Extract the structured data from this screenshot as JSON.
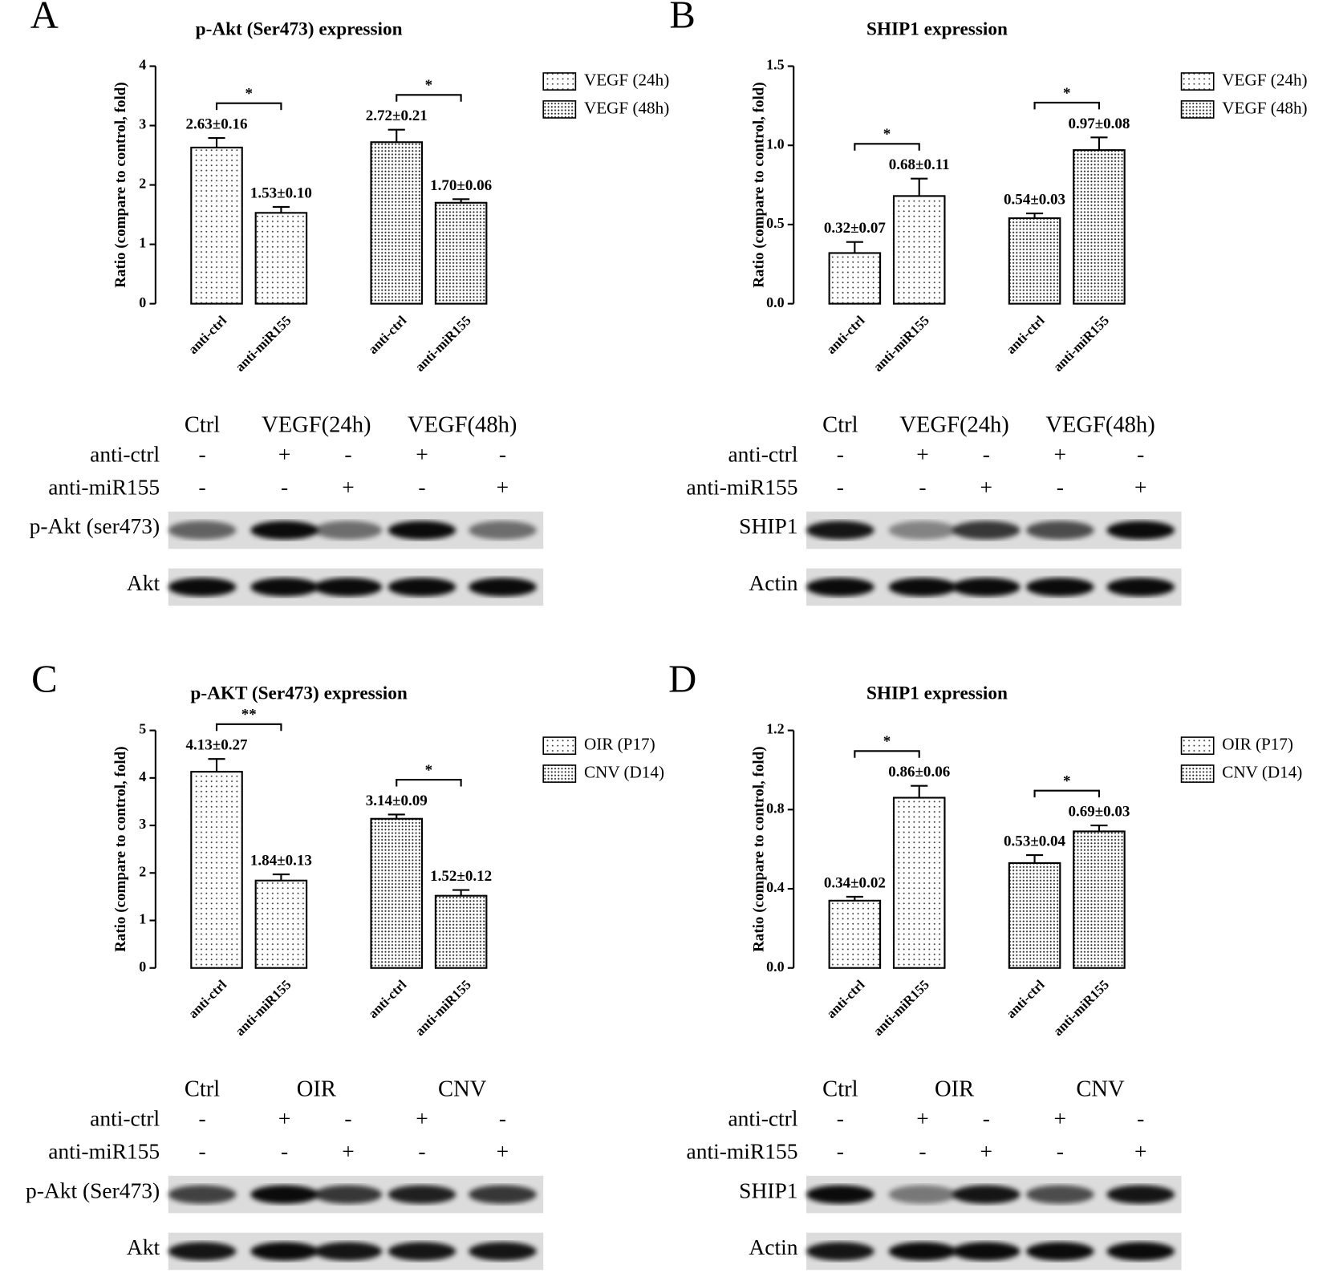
{
  "chart_data": [
    {
      "type": "bar",
      "panel": "A",
      "title": "p-Akt (Ser473) expression",
      "y_label": "Ratio (compare to control, fold)",
      "categories": [
        "anti-ctrl",
        "anti-miR155"
      ],
      "series": [
        {
          "name": "VEGF (24h)",
          "pattern": "sparse-dots",
          "values": [
            2.63,
            1.53
          ],
          "errors": [
            0.16,
            0.1
          ],
          "value_labels": [
            "2.63±0.16",
            "1.53±0.10"
          ],
          "significance": "*"
        },
        {
          "name": "VEGF (48h)",
          "pattern": "dense-dots",
          "values": [
            2.72,
            1.7
          ],
          "errors": [
            0.21,
            0.06
          ],
          "value_labels": [
            "2.72±0.21",
            "1.70±0.06"
          ],
          "significance": "*"
        }
      ],
      "ylim": [
        0,
        4
      ],
      "yticks": [
        0,
        1,
        2,
        3,
        4
      ]
    },
    {
      "type": "bar",
      "panel": "B",
      "title": "SHIP1 expression",
      "y_label": "Ratio (compare to control, fold)",
      "categories": [
        "anti-ctrl",
        "anti-miR155"
      ],
      "series": [
        {
          "name": "VEGF (24h)",
          "pattern": "sparse-dots",
          "values": [
            0.32,
            0.68
          ],
          "errors": [
            0.07,
            0.11
          ],
          "value_labels": [
            "0.32±0.07",
            "0.68±0.11"
          ],
          "significance": "*"
        },
        {
          "name": "VEGF (48h)",
          "pattern": "dense-dots",
          "values": [
            0.54,
            0.97
          ],
          "errors": [
            0.03,
            0.08
          ],
          "value_labels": [
            "0.54±0.03",
            "0.97±0.08"
          ],
          "significance": "*"
        }
      ],
      "ylim": [
        0,
        1.5
      ],
      "yticks": [
        {
          "value": 0,
          "label": "0.0"
        },
        {
          "value": 0.5,
          "label": "0.5"
        },
        {
          "value": 1,
          "label": "1.0"
        },
        {
          "value": 1.5,
          "label": "1.5"
        }
      ]
    },
    {
      "type": "bar",
      "panel": "C",
      "title": "p-AKT (Ser473) expression",
      "y_label": "Ratio (compare to control, fold)",
      "categories": [
        "anti-ctrl",
        "anti-miR155"
      ],
      "series": [
        {
          "name": "OIR (P17)",
          "pattern": "sparse-dots",
          "values": [
            4.13,
            1.84
          ],
          "errors": [
            0.27,
            0.13
          ],
          "value_labels": [
            "4.13±0.27",
            "1.84±0.13"
          ],
          "significance": "**"
        },
        {
          "name": "CNV (D14)",
          "pattern": "dense-dots",
          "values": [
            3.14,
            1.52
          ],
          "errors": [
            0.09,
            0.12
          ],
          "value_labels": [
            "3.14±0.09",
            "1.52±0.12"
          ],
          "significance": "*"
        }
      ],
      "ylim": [
        0,
        5
      ],
      "yticks": [
        0,
        1,
        2,
        3,
        4,
        5
      ]
    },
    {
      "type": "bar",
      "panel": "D",
      "title": "SHIP1 expression",
      "y_label": "Ratio (compare to control, fold)",
      "categories": [
        "anti-ctrl",
        "anti-miR155"
      ],
      "series": [
        {
          "name": "OIR (P17)",
          "pattern": "sparse-dots",
          "values": [
            0.34,
            0.86
          ],
          "errors": [
            0.02,
            0.06
          ],
          "value_labels": [
            "0.34±0.02",
            "0.86±0.06"
          ],
          "significance": "*"
        },
        {
          "name": "CNV (D14)",
          "pattern": "dense-dots",
          "values": [
            0.53,
            0.69
          ],
          "errors": [
            0.04,
            0.03
          ],
          "value_labels": [
            "0.53±0.04",
            "0.69±0.03"
          ],
          "significance": "*"
        }
      ],
      "ylim": [
        0,
        1.2
      ],
      "yticks": [
        {
          "value": 0,
          "label": "0.0"
        },
        {
          "value": 0.4,
          "label": "0.4"
        },
        {
          "value": 0.8,
          "label": "0.8"
        },
        {
          "value": 1.2,
          "label": "1.2"
        }
      ]
    }
  ],
  "blots": [
    {
      "columns": [
        "Ctrl",
        "VEGF(24h)",
        "VEGF(48h)"
      ],
      "rows": [
        {
          "label": "anti-ctrl",
          "signs": [
            "-",
            "+",
            "-",
            "+",
            "-"
          ]
        },
        {
          "label": "anti-miR155",
          "signs": [
            "-",
            "-",
            "+",
            "-",
            "+"
          ]
        }
      ],
      "bands": [
        "p-Akt (ser473)",
        "Akt"
      ]
    },
    {
      "columns": [
        "Ctrl",
        "VEGF(24h)",
        "VEGF(48h)"
      ],
      "rows": [
        {
          "label": "anti-ctrl",
          "signs": [
            "-",
            "+",
            "-",
            "+",
            "-"
          ]
        },
        {
          "label": "anti-miR155",
          "signs": [
            "-",
            "-",
            "+",
            "-",
            "+"
          ]
        }
      ],
      "bands": [
        "SHIP1",
        "Actin"
      ]
    },
    {
      "columns": [
        "Ctrl",
        "OIR",
        "CNV"
      ],
      "rows": [
        {
          "label": "anti-ctrl",
          "signs": [
            "-",
            "+",
            "-",
            "+",
            "-"
          ]
        },
        {
          "label": "anti-miR155",
          "signs": [
            "-",
            "-",
            "+",
            "-",
            "+"
          ]
        }
      ],
      "bands": [
        "p-Akt (Ser473)",
        "Akt"
      ]
    },
    {
      "columns": [
        "Ctrl",
        "OIR",
        "CNV"
      ],
      "rows": [
        {
          "label": "anti-ctrl",
          "signs": [
            "-",
            "+",
            "-",
            "+",
            "-"
          ]
        },
        {
          "label": "anti-miR155",
          "signs": [
            "-",
            "-",
            "+",
            "-",
            "+"
          ]
        }
      ],
      "bands": [
        "SHIP1",
        "Actin"
      ]
    }
  ]
}
